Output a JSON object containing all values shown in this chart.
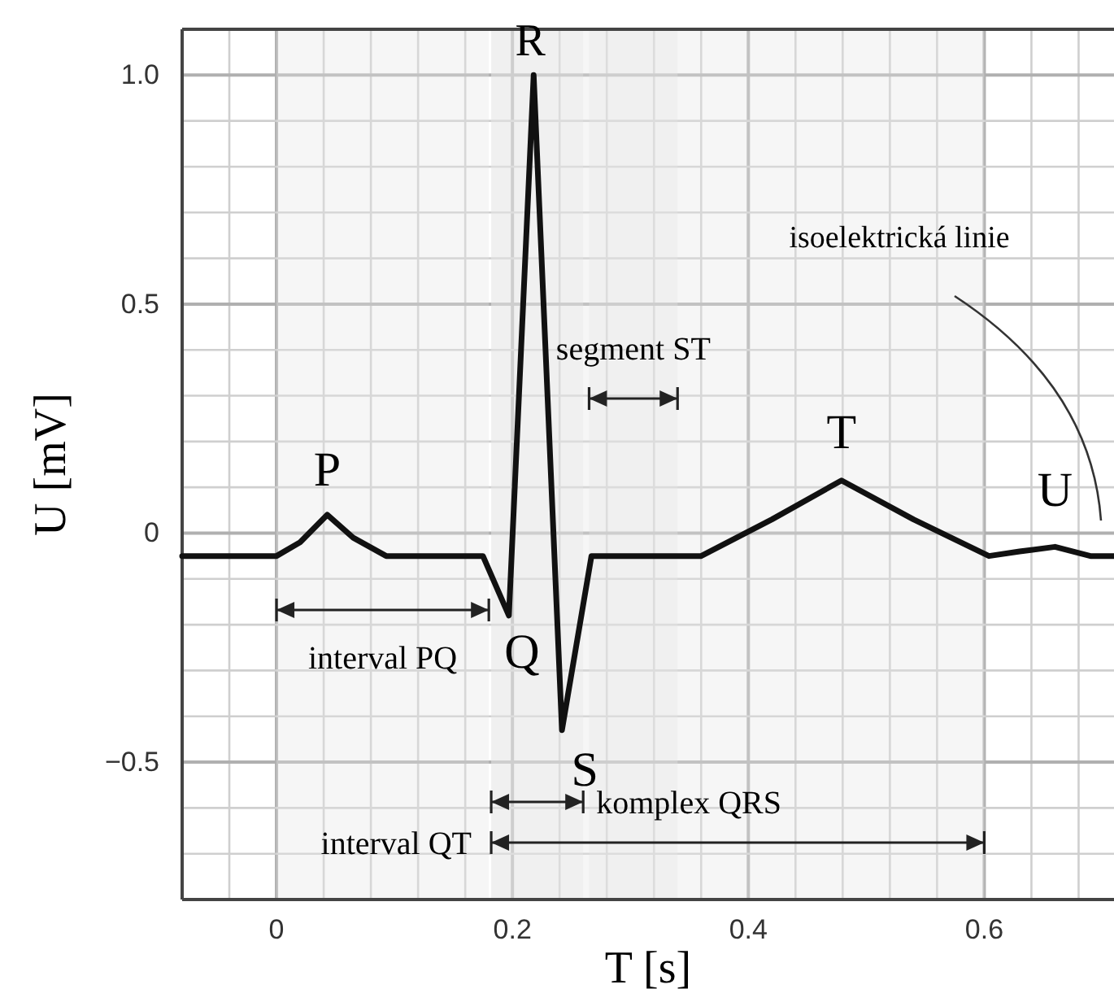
{
  "chart_data": {
    "type": "line",
    "xlabel": "T [s]",
    "ylabel": "U [mV]",
    "xlim": [
      -0.08,
      0.71
    ],
    "ylim": [
      -0.8,
      1.1
    ],
    "xticks": [
      {
        "value": -0.04,
        "label": null
      },
      0,
      {
        "value": 0.04,
        "label": null
      },
      {
        "value": 0.08,
        "label": null
      },
      {
        "value": 0.12,
        "label": null
      },
      {
        "value": 0.16,
        "label": null
      },
      {
        "value": 0.2,
        "label": "0.2"
      },
      {
        "value": 0.24,
        "label": null
      },
      {
        "value": 0.28,
        "label": null
      },
      {
        "value": 0.32,
        "label": null
      },
      {
        "value": 0.36,
        "label": null
      },
      {
        "value": 0.4,
        "label": "0.4"
      },
      {
        "value": 0.44,
        "label": null
      },
      {
        "value": 0.48,
        "label": null
      },
      {
        "value": 0.52,
        "label": null
      },
      {
        "value": 0.56,
        "label": null
      },
      {
        "value": 0.6,
        "label": "0.6"
      },
      {
        "value": 0.64,
        "label": null
      },
      {
        "value": 0.68,
        "label": null
      }
    ],
    "yticks": [
      {
        "value": -0.7,
        "label": null
      },
      {
        "value": -0.6,
        "label": null
      },
      {
        "value": -0.5,
        "label": "−0.5"
      },
      {
        "value": -0.4,
        "label": null
      },
      {
        "value": -0.3,
        "label": null
      },
      {
        "value": -0.2,
        "label": null
      },
      {
        "value": -0.1,
        "label": null
      },
      0,
      {
        "value": 0.1,
        "label": null
      },
      {
        "value": 0.2,
        "label": null
      },
      {
        "value": 0.3,
        "label": null
      },
      {
        "value": 0.4,
        "label": null
      },
      {
        "value": 0.5,
        "label": "0.5"
      },
      {
        "value": 0.6,
        "label": null
      },
      {
        "value": 0.7,
        "label": null
      },
      {
        "value": 0.8,
        "label": null
      },
      {
        "value": 0.9,
        "label": null
      },
      {
        "value": 1.0,
        "label": "1.0"
      }
    ],
    "grid": true,
    "line_style": "solid",
    "marker": "none",
    "series": [
      {
        "color": "#111111",
        "x": [
          -0.08,
          0,
          0.02,
          0.043,
          0.065,
          0.093,
          0.175,
          0.197,
          0.218,
          0.242,
          0.267,
          0.36,
          0.42,
          0.479,
          0.54,
          0.604,
          0.63,
          0.66,
          0.69,
          0.71
        ],
        "values": [
          -0.05,
          -0.05,
          -0.02,
          0.04,
          -0.01,
          -0.05,
          -0.05,
          -0.18,
          1.0,
          -0.43,
          -0.05,
          -0.05,
          0.03,
          0.115,
          0.03,
          -0.05,
          -0.04,
          -0.03,
          -0.05,
          -0.05
        ]
      }
    ],
    "bands": [
      {
        "axis": "x",
        "from": 0,
        "to": 0.18,
        "label": "interval PQ",
        "color": "#e6e6e6"
      },
      {
        "axis": "x",
        "from": 0.265,
        "to": 0.34,
        "label": "segment ST",
        "color": "#e6e6e6"
      },
      {
        "axis": "x",
        "from": 0.182,
        "to": 0.26,
        "label": "komplex QRS",
        "color": "#e6e6e6"
      },
      {
        "axis": "x",
        "from": 0.182,
        "to": 0.6,
        "label": "interval QT",
        "color": "#e6e6e6"
      }
    ],
    "annotations": [
      {
        "text": "P",
        "x": 0.043,
        "y": 0.04
      },
      {
        "text": "Q",
        "x": 0.197,
        "y": -0.18
      },
      {
        "text": "R",
        "x": 0.218,
        "y": 1.0
      },
      {
        "text": "S",
        "x": 0.242,
        "y": -0.43
      },
      {
        "text": "T",
        "x": 0.479,
        "y": 0.115
      },
      {
        "text": "U",
        "x": 0.66,
        "y": -0.03
      },
      "isoelektrická linie"
    ]
  }
}
